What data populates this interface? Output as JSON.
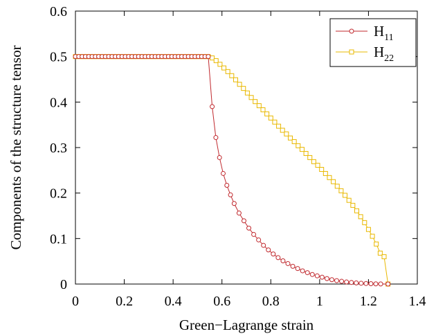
{
  "chart_data": {
    "type": "line",
    "xlabel": "Green−Lagrange strain",
    "ylabel": "Components of the structure tensor",
    "xlim": [
      0,
      1.4
    ],
    "ylim": [
      0,
      0.6
    ],
    "xticks": [
      "0",
      "0.2",
      "0.4",
      "0.6",
      "0.8",
      "1",
      "1.2",
      "1.4"
    ],
    "yticks": [
      "0",
      "0.1",
      "0.2",
      "0.3",
      "0.4",
      "0.5",
      "0.6"
    ],
    "grid": false,
    "legend_position": "top-right",
    "series": [
      {
        "name": "H11",
        "label_main": "H",
        "label_sub": "11",
        "color": "#c0282d",
        "marker": "circle",
        "x": [
          0,
          0.0136,
          0.0272,
          0.0408,
          0.0544,
          0.068,
          0.0816,
          0.0952,
          0.1088,
          0.1224,
          0.136,
          0.1496,
          0.1632,
          0.1768,
          0.1904,
          0.204,
          0.2176,
          0.2312,
          0.2448,
          0.2584,
          0.272,
          0.2856,
          0.2992,
          0.3128,
          0.3264,
          0.34,
          0.3536,
          0.3672,
          0.3808,
          0.3944,
          0.408,
          0.4216,
          0.4352,
          0.4488,
          0.4624,
          0.476,
          0.4896,
          0.5032,
          0.5168,
          0.5304,
          0.544,
          0.56,
          0.575,
          0.59,
          0.605,
          0.62,
          0.635,
          0.65,
          0.67,
          0.69,
          0.71,
          0.73,
          0.75,
          0.77,
          0.79,
          0.81,
          0.83,
          0.85,
          0.87,
          0.89,
          0.91,
          0.93,
          0.95,
          0.97,
          0.99,
          1.01,
          1.03,
          1.05,
          1.07,
          1.09,
          1.11,
          1.13,
          1.15,
          1.17,
          1.19,
          1.21,
          1.23,
          1.25,
          1.28
        ],
        "y": [
          0.5,
          0.5,
          0.5,
          0.5,
          0.5,
          0.5,
          0.5,
          0.5,
          0.5,
          0.5,
          0.5,
          0.5,
          0.5,
          0.5,
          0.5,
          0.5,
          0.5,
          0.5,
          0.5,
          0.5,
          0.5,
          0.5,
          0.5,
          0.5,
          0.5,
          0.5,
          0.5,
          0.5,
          0.5,
          0.5,
          0.5,
          0.5,
          0.5,
          0.5,
          0.5,
          0.5,
          0.5,
          0.5,
          0.5,
          0.5,
          0.5,
          0.39,
          0.322,
          0.278,
          0.243,
          0.217,
          0.196,
          0.177,
          0.156,
          0.139,
          0.123,
          0.109,
          0.097,
          0.085,
          0.075,
          0.066,
          0.058,
          0.051,
          0.045,
          0.039,
          0.034,
          0.029,
          0.025,
          0.021,
          0.018,
          0.015,
          0.012,
          0.0095,
          0.0075,
          0.006,
          0.0045,
          0.0035,
          0.0025,
          0.0018,
          0.0012,
          0.0008,
          0.0004,
          0.0002,
          0
        ]
      },
      {
        "name": "H22",
        "label_main": "H",
        "label_sub": "22",
        "color": "#e9b800",
        "marker": "square",
        "x": [
          0,
          0.0136,
          0.0272,
          0.0408,
          0.0544,
          0.068,
          0.0816,
          0.0952,
          0.1088,
          0.1224,
          0.136,
          0.1496,
          0.1632,
          0.1768,
          0.1904,
          0.204,
          0.2176,
          0.2312,
          0.2448,
          0.2584,
          0.272,
          0.2856,
          0.2992,
          0.3128,
          0.3264,
          0.34,
          0.3536,
          0.3672,
          0.3808,
          0.3944,
          0.408,
          0.4216,
          0.4352,
          0.4488,
          0.4624,
          0.476,
          0.4896,
          0.5032,
          0.5168,
          0.5304,
          0.544,
          0.56,
          0.576,
          0.592,
          0.608,
          0.624,
          0.64,
          0.656,
          0.672,
          0.688,
          0.704,
          0.72,
          0.736,
          0.752,
          0.768,
          0.784,
          0.8,
          0.816,
          0.832,
          0.848,
          0.864,
          0.88,
          0.896,
          0.912,
          0.928,
          0.944,
          0.96,
          0.976,
          0.992,
          1.008,
          1.024,
          1.04,
          1.056,
          1.072,
          1.088,
          1.104,
          1.12,
          1.136,
          1.152,
          1.168,
          1.184,
          1.2,
          1.216,
          1.232,
          1.248,
          1.264,
          1.28
        ],
        "y": [
          0.5,
          0.5,
          0.5,
          0.5,
          0.5,
          0.5,
          0.5,
          0.5,
          0.5,
          0.5,
          0.5,
          0.5,
          0.5,
          0.5,
          0.5,
          0.5,
          0.5,
          0.5,
          0.5,
          0.5,
          0.5,
          0.5,
          0.5,
          0.5,
          0.5,
          0.5,
          0.5,
          0.5,
          0.5,
          0.5,
          0.5,
          0.5,
          0.5,
          0.5,
          0.5,
          0.5,
          0.5,
          0.5,
          0.5,
          0.5,
          0.5,
          0.497,
          0.491,
          0.483,
          0.475,
          0.467,
          0.458,
          0.449,
          0.439,
          0.43,
          0.42,
          0.41,
          0.401,
          0.392,
          0.383,
          0.374,
          0.365,
          0.356,
          0.347,
          0.338,
          0.33,
          0.321,
          0.313,
          0.304,
          0.296,
          0.287,
          0.278,
          0.269,
          0.261,
          0.252,
          0.243,
          0.234,
          0.225,
          0.215,
          0.205,
          0.195,
          0.184,
          0.173,
          0.161,
          0.148,
          0.135,
          0.12,
          0.105,
          0.088,
          0.068,
          0.06,
          0
        ]
      }
    ]
  }
}
